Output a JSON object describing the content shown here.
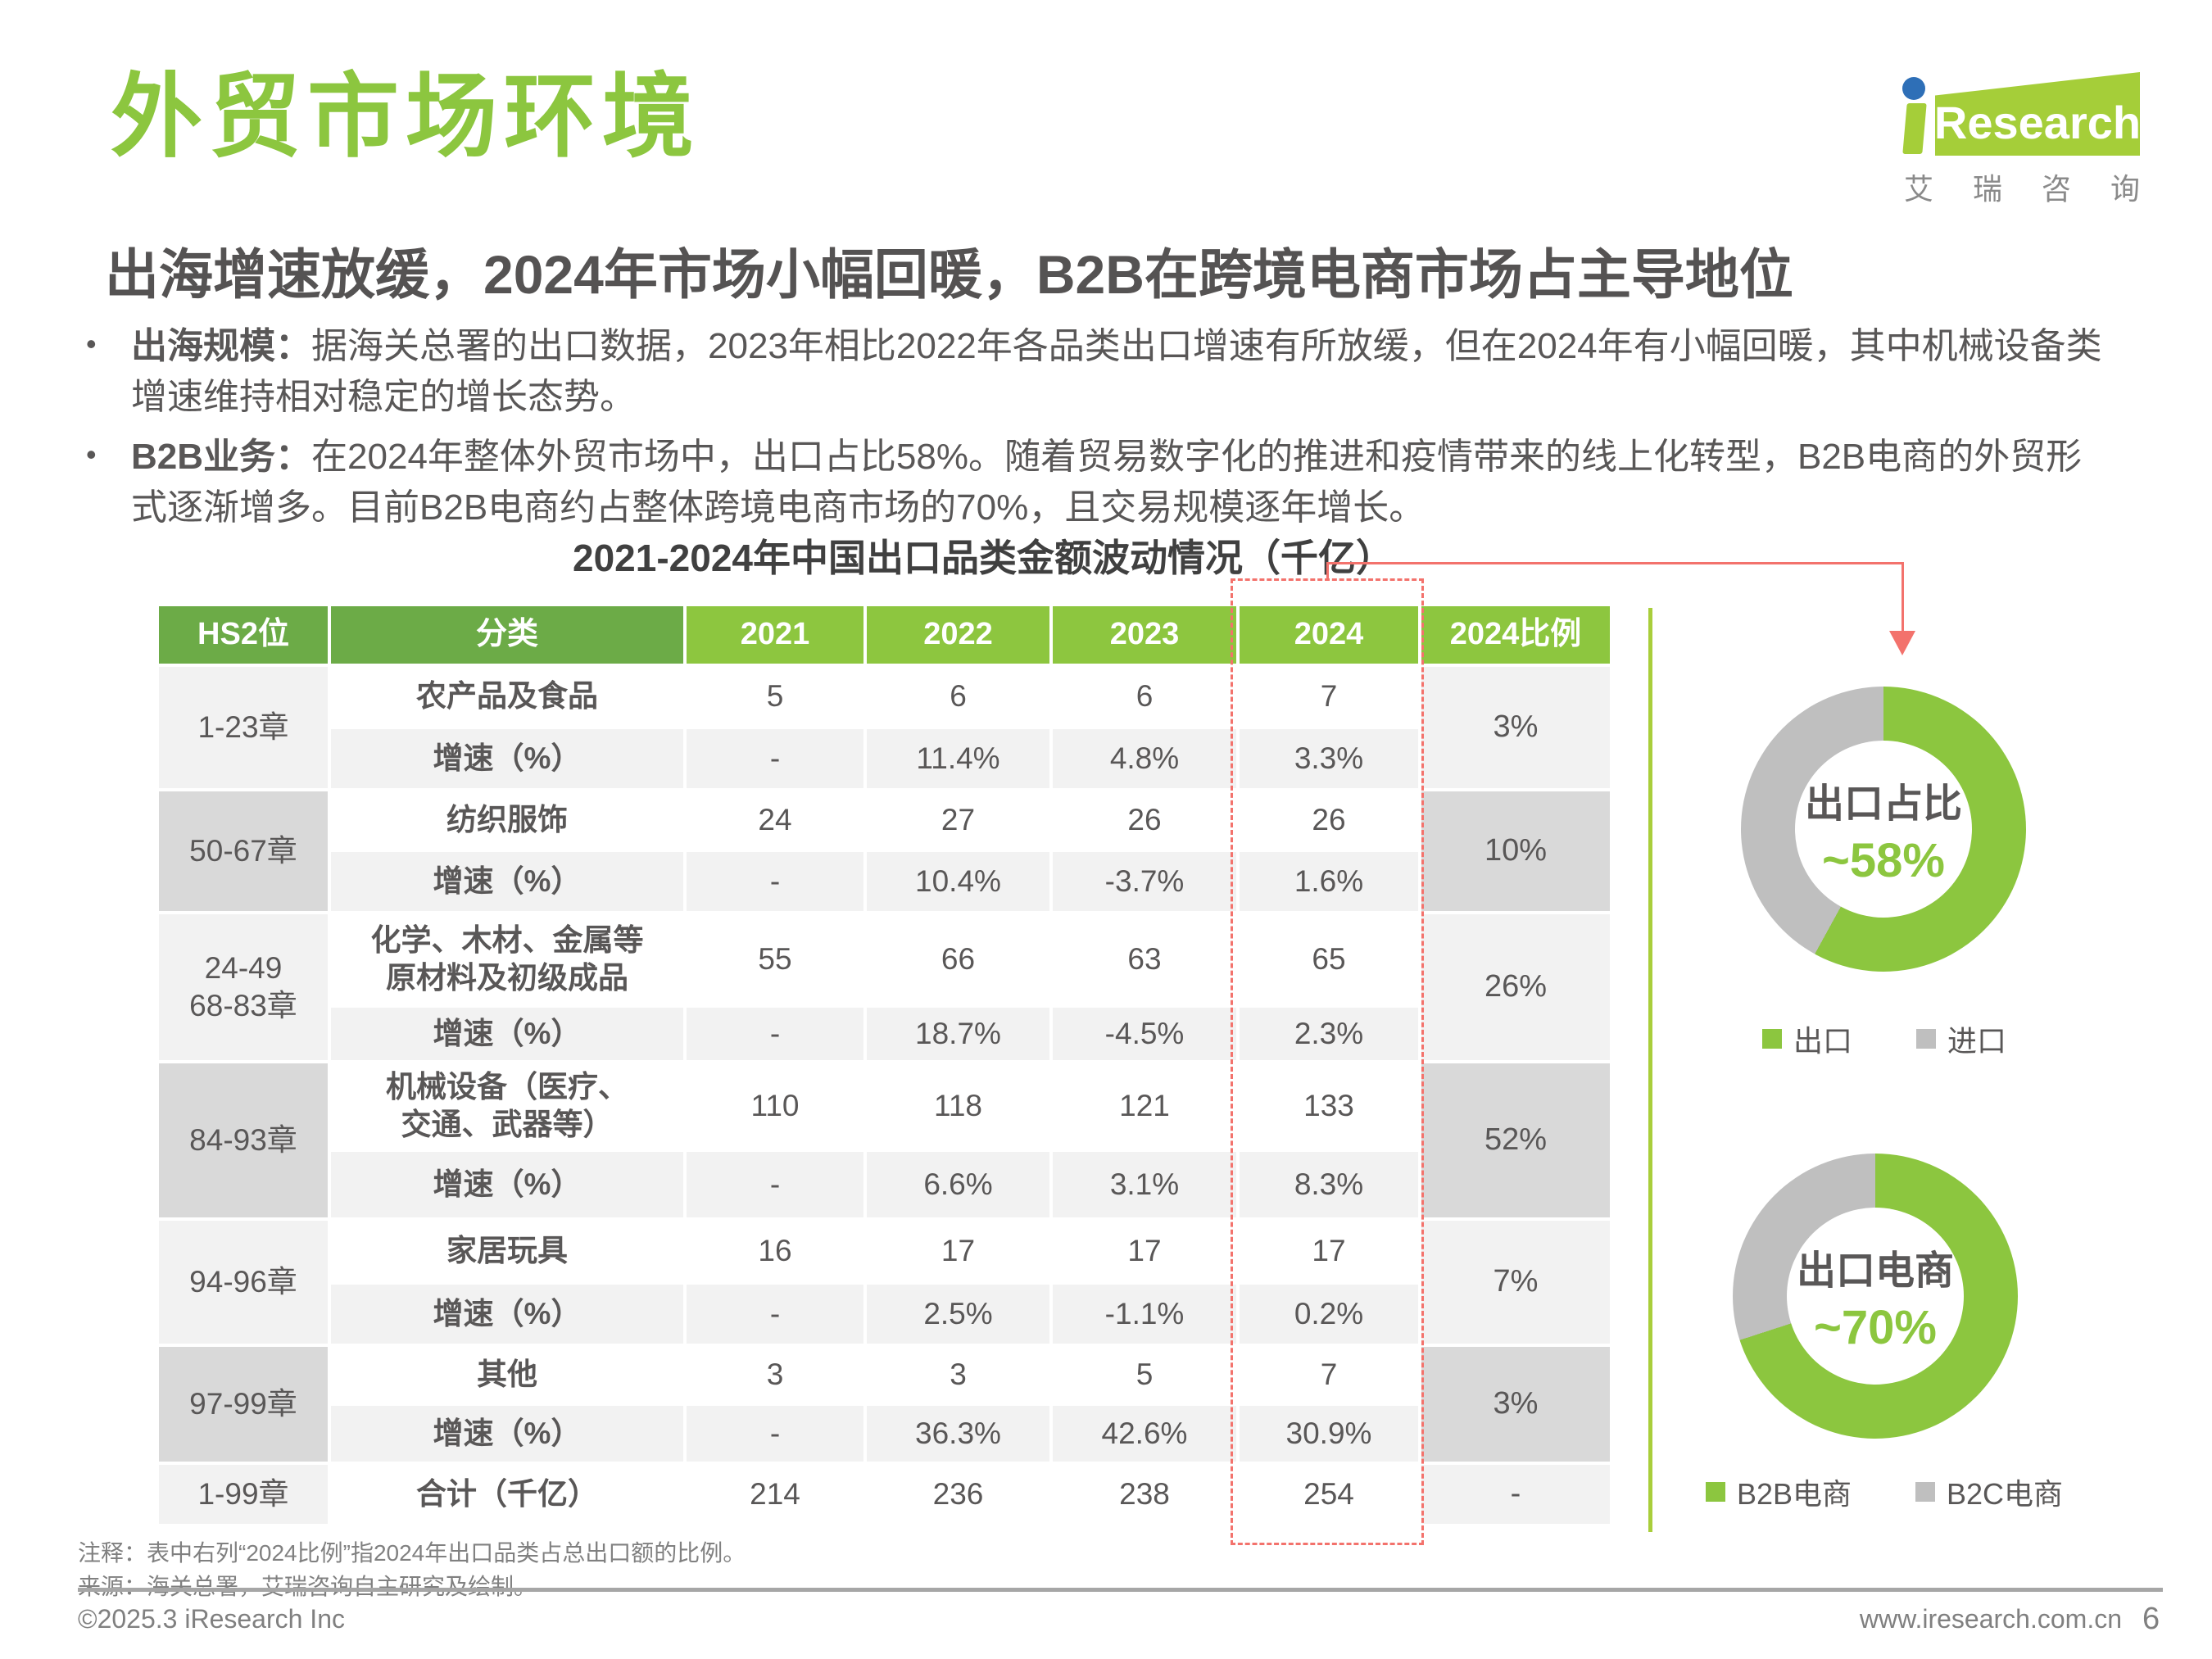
{
  "page": {
    "title": "外贸市场环境",
    "subtitle": "出海增速放缓，2024年市场小幅回暖，B2B在跨境电商市场占主导地位",
    "bullets": [
      {
        "label": "出海规模：",
        "text": "据海关总署的出口数据，2023年相比2022年各品类出口增速有所放缓，但在2024年有小幅回暖，其中机械设备类增速维持相对稳定的增长态势。"
      },
      {
        "label": "B2B业务：",
        "text": "在2024年整体外贸市场中，出口占比58%。随着贸易数字化的推进和疫情带来的线上化转型，B2B电商的外贸形式逐渐增多。目前B2B电商约占整体跨境电商市场的70%，且交易规模逐年增长。"
      }
    ],
    "logo": {
      "research": "Research",
      "cn": "艾瑞咨询"
    },
    "notes": [
      "注释：表中右列“2024比例”指2024年出口品类占总出口额的比例。",
      "来源：海关总署，艾瑞咨询自主研究及绘制。"
    ],
    "footer": {
      "copyright": "©2025.3 iResearch Inc",
      "site": "www.iresearch.com.cn",
      "page_num": "6"
    }
  },
  "colors": {
    "accent_green": "#8CC63F",
    "header_green_dark": "#6CAB47",
    "logo_green": "#A5CE39",
    "highlight_red": "#F3726C",
    "donut_gray": "#BFBFBF",
    "side_gray_light": "#F2F2F2",
    "side_gray_dark": "#D9D9D9"
  },
  "chart_data": [
    {
      "type": "table",
      "title": "2021-2024年中国出口品类金额波动情况（千亿）",
      "columns": [
        "HS2位",
        "分类",
        "2021",
        "2022",
        "2023",
        "2024",
        "2024比例"
      ],
      "growth_label": "增速（%）",
      "groups": [
        {
          "hs2": "1-23章",
          "category": "农产品及食品",
          "values": [
            "5",
            "6",
            "6",
            "7"
          ],
          "growth": [
            "-",
            "11.4%",
            "4.8%",
            "3.3%"
          ],
          "share": "3%"
        },
        {
          "hs2": "50-67章",
          "category": "纺织服饰",
          "values": [
            "24",
            "27",
            "26",
            "26"
          ],
          "growth": [
            "-",
            "10.4%",
            "-3.7%",
            "1.6%"
          ],
          "share": "10%"
        },
        {
          "hs2": "24-49\n68-83章",
          "category": "化学、木材、金属等\n原材料及初级成品",
          "values": [
            "55",
            "66",
            "63",
            "65"
          ],
          "growth": [
            "-",
            "18.7%",
            "-4.5%",
            "2.3%"
          ],
          "share": "26%"
        },
        {
          "hs2": "84-93章",
          "category": "机械设备（医疗、\n交通、武器等）",
          "values": [
            "110",
            "118",
            "121",
            "133"
          ],
          "growth": [
            "-",
            "6.6%",
            "3.1%",
            "8.3%"
          ],
          "share": "52%"
        },
        {
          "hs2": "94-96章",
          "category": "家居玩具",
          "values": [
            "16",
            "17",
            "17",
            "17"
          ],
          "growth": [
            "-",
            "2.5%",
            "-1.1%",
            "0.2%"
          ],
          "share": "7%"
        },
        {
          "hs2": "97-99章",
          "category": "其他",
          "values": [
            "3",
            "3",
            "5",
            "7"
          ],
          "growth": [
            "-",
            "36.3%",
            "42.6%",
            "30.9%"
          ],
          "share": "3%"
        }
      ],
      "total": {
        "hs2": "1-99章",
        "category": "合计（千亿）",
        "values": [
          "214",
          "236",
          "238",
          "254"
        ],
        "share": "-"
      }
    },
    {
      "type": "pie",
      "title": "出口占比",
      "center_value": "~58%",
      "legend_position": "bottom",
      "slices": [
        {
          "label": "出口",
          "value": 58,
          "color": "#8CC63F"
        },
        {
          "label": "进口",
          "value": 42,
          "color": "#BFBFBF"
        }
      ]
    },
    {
      "type": "pie",
      "title": "出口电商",
      "center_value": "~70%",
      "legend_position": "bottom",
      "slices": [
        {
          "label": "B2B电商",
          "value": 70,
          "color": "#8CC63F"
        },
        {
          "label": "B2C电商",
          "value": 30,
          "color": "#BFBFBF"
        }
      ]
    }
  ]
}
